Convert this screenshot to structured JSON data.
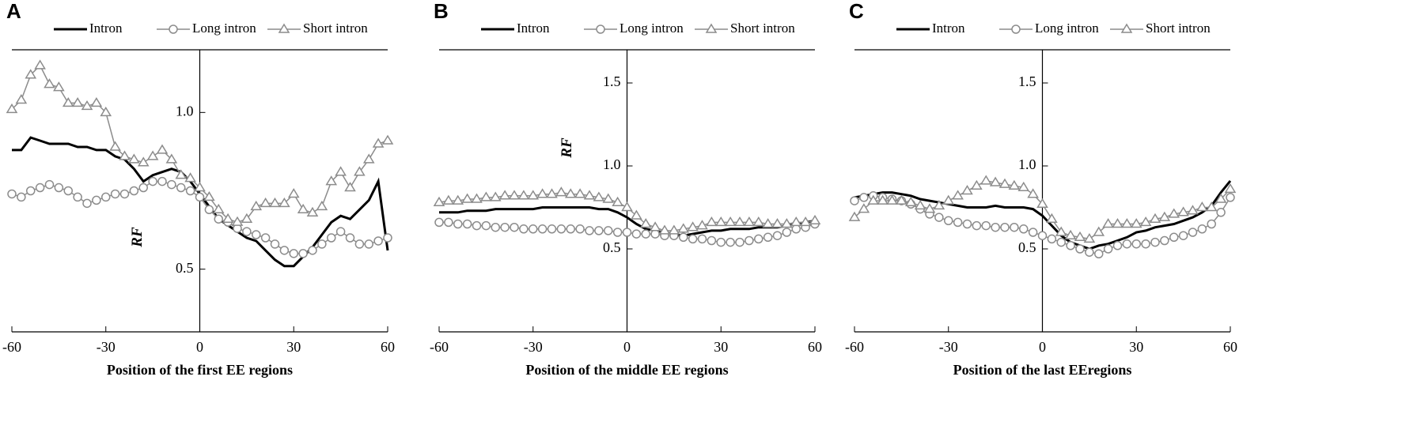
{
  "chart_data": [
    {
      "type": "line",
      "label": "A",
      "xlabel": "Position of the first EE regions",
      "ylabel": "RF",
      "xlim": [
        -60,
        60
      ],
      "xticks": [
        -60,
        -30,
        0,
        30,
        60
      ],
      "ylim": [
        0.3,
        1.2
      ],
      "yticks": [
        0.5,
        {
          "value": 1,
          "label": "1.0"
        }
      ],
      "x": [
        -60,
        -57,
        -54,
        -51,
        -48,
        -45,
        -42,
        -39,
        -36,
        -33,
        -30,
        -27,
        -24,
        -21,
        -18,
        -15,
        -12,
        -9,
        -6,
        -3,
        0,
        3,
        6,
        9,
        12,
        15,
        18,
        21,
        24,
        27,
        30,
        33,
        36,
        39,
        42,
        45,
        48,
        51,
        54,
        57,
        60
      ],
      "series": [
        {
          "name": "Intron",
          "color": "#000000",
          "marker": "none",
          "values": [
            0.88,
            0.88,
            0.92,
            0.91,
            0.9,
            0.9,
            0.9,
            0.89,
            0.89,
            0.88,
            0.88,
            0.86,
            0.85,
            0.82,
            0.78,
            0.8,
            0.81,
            0.82,
            0.81,
            0.78,
            0.74,
            0.7,
            0.66,
            0.64,
            0.62,
            0.6,
            0.59,
            0.56,
            0.53,
            0.51,
            0.51,
            0.54,
            0.57,
            0.61,
            0.65,
            0.67,
            0.66,
            0.69,
            0.72,
            0.78,
            0.56
          ]
        },
        {
          "name": "Long intron",
          "color": "#8c8c8c",
          "marker": "circle",
          "values": [
            0.74,
            0.73,
            0.75,
            0.76,
            0.77,
            0.76,
            0.75,
            0.73,
            0.71,
            0.72,
            0.73,
            0.74,
            0.74,
            0.75,
            0.76,
            0.78,
            0.78,
            0.77,
            0.76,
            0.75,
            0.73,
            0.69,
            0.66,
            0.65,
            0.63,
            0.62,
            0.61,
            0.6,
            0.58,
            0.56,
            0.55,
            0.55,
            0.56,
            0.58,
            0.6,
            0.62,
            0.6,
            0.58,
            0.58,
            0.59,
            0.6
          ]
        },
        {
          "name": "Short intron",
          "color": "#8c8c8c",
          "marker": "triangle",
          "values": [
            1.01,
            1.04,
            1.12,
            1.15,
            1.09,
            1.08,
            1.03,
            1.03,
            1.02,
            1.03,
            1.0,
            0.89,
            0.86,
            0.85,
            0.84,
            0.86,
            0.88,
            0.85,
            0.8,
            0.79,
            0.76,
            0.73,
            0.69,
            0.66,
            0.65,
            0.66,
            0.7,
            0.71,
            0.71,
            0.71,
            0.74,
            0.69,
            0.68,
            0.7,
            0.78,
            0.81,
            0.76,
            0.81,
            0.85,
            0.9,
            0.91
          ]
        }
      ]
    },
    {
      "type": "line",
      "label": "B",
      "xlabel": "Position of the middle EE regions",
      "ylabel": "RF",
      "xlim": [
        -60,
        60
      ],
      "xticks": [
        -60,
        -30,
        0,
        30,
        60
      ],
      "ylim": [
        0,
        1.7
      ],
      "yticks": [
        0.5,
        {
          "value": 1,
          "label": "1.0"
        },
        1.5
      ],
      "x": [
        -60,
        -57,
        -54,
        -51,
        -48,
        -45,
        -42,
        -39,
        -36,
        -33,
        -30,
        -27,
        -24,
        -21,
        -18,
        -15,
        -12,
        -9,
        -6,
        -3,
        0,
        3,
        6,
        9,
        12,
        15,
        18,
        21,
        24,
        27,
        30,
        33,
        36,
        39,
        42,
        45,
        48,
        51,
        54,
        57,
        60
      ],
      "series": [
        {
          "name": "Intron",
          "color": "#000000",
          "marker": "none",
          "values": [
            0.72,
            0.72,
            0.72,
            0.73,
            0.73,
            0.73,
            0.74,
            0.74,
            0.74,
            0.74,
            0.74,
            0.75,
            0.75,
            0.75,
            0.75,
            0.75,
            0.75,
            0.74,
            0.74,
            0.72,
            0.69,
            0.65,
            0.62,
            0.61,
            0.6,
            0.59,
            0.58,
            0.59,
            0.6,
            0.61,
            0.61,
            0.62,
            0.62,
            0.62,
            0.63,
            0.63,
            0.63,
            0.64,
            0.65,
            0.66,
            0.67
          ]
        },
        {
          "name": "Long intron",
          "color": "#8c8c8c",
          "marker": "circle",
          "values": [
            0.66,
            0.66,
            0.65,
            0.65,
            0.64,
            0.64,
            0.63,
            0.63,
            0.63,
            0.62,
            0.62,
            0.62,
            0.62,
            0.62,
            0.62,
            0.62,
            0.61,
            0.61,
            0.61,
            0.6,
            0.6,
            0.59,
            0.59,
            0.59,
            0.58,
            0.58,
            0.57,
            0.56,
            0.56,
            0.55,
            0.54,
            0.54,
            0.54,
            0.55,
            0.56,
            0.57,
            0.58,
            0.6,
            0.62,
            0.63,
            0.65
          ]
        },
        {
          "name": "Short intron",
          "color": "#8c8c8c",
          "marker": "triangle",
          "values": [
            0.78,
            0.79,
            0.79,
            0.8,
            0.8,
            0.81,
            0.81,
            0.82,
            0.82,
            0.82,
            0.82,
            0.83,
            0.83,
            0.84,
            0.83,
            0.83,
            0.82,
            0.81,
            0.8,
            0.78,
            0.75,
            0.7,
            0.65,
            0.63,
            0.61,
            0.61,
            0.62,
            0.63,
            0.64,
            0.66,
            0.66,
            0.66,
            0.66,
            0.66,
            0.66,
            0.65,
            0.65,
            0.65,
            0.66,
            0.66,
            0.67
          ]
        }
      ]
    },
    {
      "type": "line",
      "label": "C",
      "xlabel": "Position of the last EEregions",
      "xlim": [
        -60,
        60
      ],
      "xticks": [
        -60,
        -30,
        0,
        30,
        60
      ],
      "ylim": [
        0,
        1.7
      ],
      "yticks": [
        0.5,
        {
          "value": 1,
          "label": "1.0"
        },
        1.5
      ],
      "x": [
        -60,
        -57,
        -54,
        -51,
        -48,
        -45,
        -42,
        -39,
        -36,
        -33,
        -30,
        -27,
        -24,
        -21,
        -18,
        -15,
        -12,
        -9,
        -6,
        -3,
        0,
        3,
        6,
        9,
        12,
        15,
        18,
        21,
        24,
        27,
        30,
        33,
        36,
        39,
        42,
        45,
        48,
        51,
        54,
        57,
        60
      ],
      "series": [
        {
          "name": "Intron",
          "color": "#000000",
          "marker": "none",
          "values": [
            0.81,
            0.82,
            0.83,
            0.84,
            0.84,
            0.83,
            0.82,
            0.8,
            0.79,
            0.78,
            0.77,
            0.76,
            0.75,
            0.75,
            0.75,
            0.76,
            0.75,
            0.75,
            0.75,
            0.74,
            0.7,
            0.64,
            0.58,
            0.54,
            0.52,
            0.5,
            0.52,
            0.53,
            0.55,
            0.57,
            0.6,
            0.61,
            0.63,
            0.64,
            0.65,
            0.67,
            0.69,
            0.72,
            0.76,
            0.84,
            0.91
          ]
        },
        {
          "name": "Long intron",
          "color": "#8c8c8c",
          "marker": "circle",
          "values": [
            0.79,
            0.81,
            0.82,
            0.81,
            0.8,
            0.79,
            0.77,
            0.74,
            0.71,
            0.69,
            0.67,
            0.66,
            0.65,
            0.64,
            0.64,
            0.63,
            0.63,
            0.63,
            0.62,
            0.6,
            0.58,
            0.56,
            0.54,
            0.52,
            0.5,
            0.48,
            0.47,
            0.5,
            0.52,
            0.53,
            0.53,
            0.53,
            0.54,
            0.55,
            0.57,
            0.58,
            0.6,
            0.62,
            0.65,
            0.72,
            0.81
          ]
        },
        {
          "name": "Short intron",
          "color": "#8c8c8c",
          "marker": "triangle",
          "values": [
            0.69,
            0.74,
            0.79,
            0.79,
            0.79,
            0.79,
            0.78,
            0.76,
            0.74,
            0.76,
            0.79,
            0.82,
            0.85,
            0.88,
            0.91,
            0.9,
            0.89,
            0.88,
            0.87,
            0.83,
            0.77,
            0.68,
            0.6,
            0.58,
            0.57,
            0.56,
            0.6,
            0.65,
            0.65,
            0.65,
            0.65,
            0.66,
            0.68,
            0.69,
            0.71,
            0.72,
            0.73,
            0.75,
            0.75,
            0.8,
            0.86
          ]
        }
      ]
    }
  ]
}
